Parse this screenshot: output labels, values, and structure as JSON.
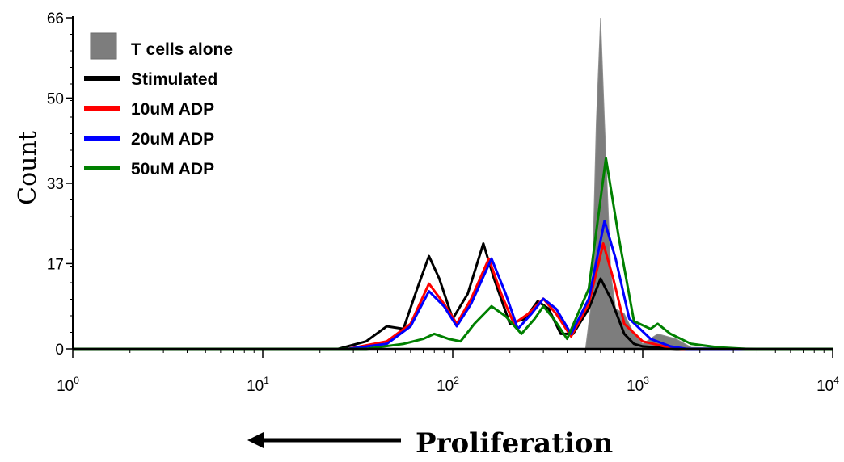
{
  "chart_data": {
    "type": "area",
    "xscale": "log",
    "xlim": [
      1,
      10000
    ],
    "ylim": [
      0,
      66
    ],
    "ylabel": "Count",
    "xlabel": "Proliferation",
    "x_ticks": [
      {
        "base": "10",
        "exp": "0",
        "value": 1
      },
      {
        "base": "10",
        "exp": "1",
        "value": 10
      },
      {
        "base": "10",
        "exp": "2",
        "value": 100
      },
      {
        "base": "10",
        "exp": "3",
        "value": 1000
      },
      {
        "base": "10",
        "exp": "4",
        "value": 10000
      }
    ],
    "y_ticks": [
      {
        "label": "0",
        "value": 0
      },
      {
        "label": "17",
        "value": 17
      },
      {
        "label": "33",
        "value": 33
      },
      {
        "label": "50",
        "value": 50
      },
      {
        "label": "66",
        "value": 66
      }
    ],
    "legend_position": "top-left",
    "series": [
      {
        "name": "T cells alone",
        "style": "filled",
        "color": "#7d7d7d",
        "points": [
          [
            1,
            0
          ],
          [
            500,
            0
          ],
          [
            540,
            10
          ],
          [
            570,
            45
          ],
          [
            600,
            66
          ],
          [
            630,
            45
          ],
          [
            680,
            15
          ],
          [
            720,
            8
          ],
          [
            800,
            7
          ],
          [
            900,
            3
          ],
          [
            1000,
            1
          ],
          [
            1200,
            3
          ],
          [
            1500,
            2
          ],
          [
            1800,
            0.3
          ],
          [
            10000,
            0
          ]
        ]
      },
      {
        "name": "Stimulated",
        "style": "line",
        "color": "#000000",
        "points": [
          [
            1,
            0
          ],
          [
            25,
            0
          ],
          [
            35,
            1.5
          ],
          [
            45,
            4.5
          ],
          [
            55,
            4
          ],
          [
            65,
            12
          ],
          [
            75,
            18.5
          ],
          [
            85,
            14
          ],
          [
            100,
            6
          ],
          [
            120,
            11
          ],
          [
            145,
            21
          ],
          [
            165,
            14
          ],
          [
            200,
            5
          ],
          [
            240,
            6
          ],
          [
            280,
            9.5
          ],
          [
            320,
            8
          ],
          [
            370,
            3
          ],
          [
            430,
            3
          ],
          [
            520,
            8
          ],
          [
            600,
            14
          ],
          [
            680,
            10
          ],
          [
            800,
            3
          ],
          [
            900,
            1
          ],
          [
            1000,
            0.5
          ],
          [
            1500,
            0
          ],
          [
            10000,
            0
          ]
        ]
      },
      {
        "name": "10uM ADP",
        "style": "line",
        "color": "#ff0000",
        "points": [
          [
            1,
            0
          ],
          [
            28,
            0
          ],
          [
            45,
            1.5
          ],
          [
            60,
            5
          ],
          [
            75,
            13
          ],
          [
            90,
            9
          ],
          [
            105,
            5
          ],
          [
            125,
            10
          ],
          [
            155,
            18
          ],
          [
            180,
            11
          ],
          [
            210,
            5
          ],
          [
            250,
            7
          ],
          [
            300,
            10
          ],
          [
            350,
            7
          ],
          [
            420,
            2.5
          ],
          [
            520,
            9
          ],
          [
            620,
            21
          ],
          [
            700,
            14
          ],
          [
            800,
            5
          ],
          [
            1000,
            1.5
          ],
          [
            1300,
            0.5
          ],
          [
            1600,
            0
          ],
          [
            10000,
            0
          ]
        ]
      },
      {
        "name": "20uM ADP",
        "style": "line",
        "color": "#0000ff",
        "points": [
          [
            1,
            0
          ],
          [
            28,
            0
          ],
          [
            45,
            1
          ],
          [
            60,
            4.5
          ],
          [
            75,
            11.5
          ],
          [
            90,
            8.5
          ],
          [
            105,
            4.5
          ],
          [
            125,
            9
          ],
          [
            160,
            18
          ],
          [
            190,
            11
          ],
          [
            220,
            4
          ],
          [
            260,
            7
          ],
          [
            300,
            10
          ],
          [
            350,
            8
          ],
          [
            420,
            3
          ],
          [
            520,
            10
          ],
          [
            630,
            25.5
          ],
          [
            720,
            18
          ],
          [
            850,
            6
          ],
          [
            1100,
            2
          ],
          [
            1400,
            0.5
          ],
          [
            1700,
            0
          ],
          [
            10000,
            0
          ]
        ]
      },
      {
        "name": "50uM ADP",
        "style": "line",
        "color": "#008000",
        "points": [
          [
            1,
            0
          ],
          [
            35,
            0
          ],
          [
            55,
            1
          ],
          [
            70,
            2
          ],
          [
            80,
            3
          ],
          [
            95,
            2
          ],
          [
            110,
            1.5
          ],
          [
            130,
            5
          ],
          [
            160,
            8.5
          ],
          [
            190,
            6.5
          ],
          [
            230,
            3
          ],
          [
            270,
            6
          ],
          [
            300,
            8.5
          ],
          [
            340,
            6
          ],
          [
            400,
            2
          ],
          [
            520,
            12
          ],
          [
            640,
            38
          ],
          [
            750,
            22
          ],
          [
            900,
            5.5
          ],
          [
            1100,
            4
          ],
          [
            1200,
            5
          ],
          [
            1400,
            3
          ],
          [
            1800,
            1
          ],
          [
            2500,
            0.3
          ],
          [
            3500,
            0
          ],
          [
            10000,
            0
          ]
        ]
      }
    ]
  }
}
